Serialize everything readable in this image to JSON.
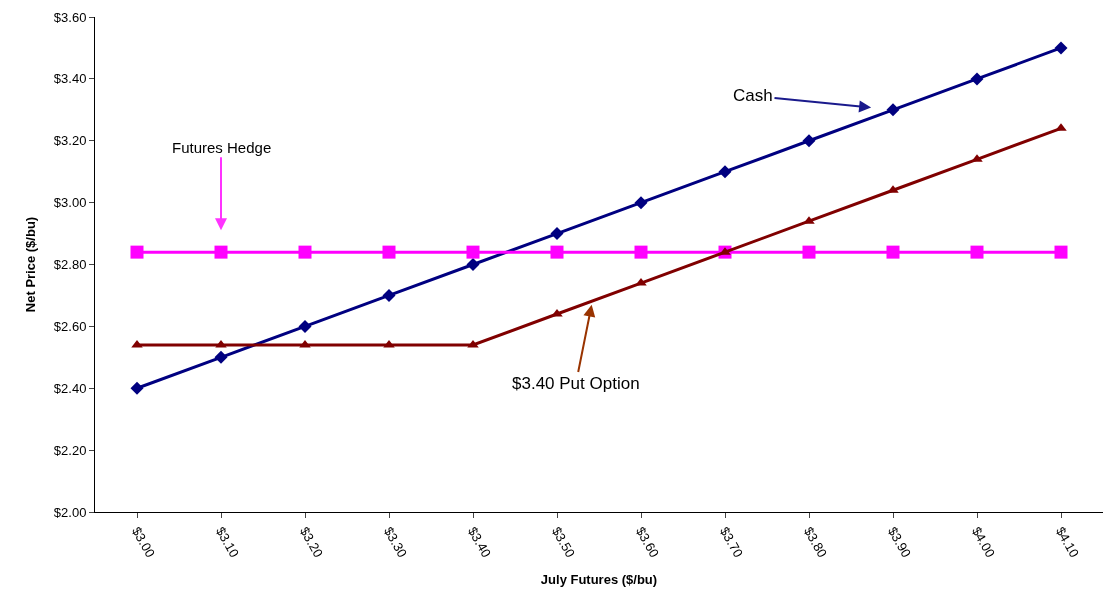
{
  "chart_data": {
    "type": "line",
    "xlabel": "July Futures ($/bu)",
    "ylabel": "Net Price ($/bu)",
    "categories": [
      "$3.00",
      "$3.10",
      "$3.20",
      "$3.30",
      "$3.40",
      "$3.50",
      "$3.60",
      "$3.70",
      "$3.80",
      "$3.90",
      "$4.00",
      "$4.10"
    ],
    "series": [
      {
        "name": "Cash",
        "color": "#000080",
        "marker": "diamond",
        "values": [
          2.4,
          2.5,
          2.6,
          2.7,
          2.8,
          2.9,
          3.0,
          3.1,
          3.2,
          3.3,
          3.4,
          3.5
        ]
      },
      {
        "name": "Futures Hedge",
        "color": "#ff00ff",
        "marker": "square",
        "values": [
          2.84,
          2.84,
          2.84,
          2.84,
          2.84,
          2.84,
          2.84,
          2.84,
          2.84,
          2.84,
          2.84,
          2.84
        ]
      },
      {
        "name": "$3.40 Put Option",
        "color": "#800000",
        "marker": "triangle",
        "values": [
          2.54,
          2.54,
          2.54,
          2.54,
          2.54,
          2.64,
          2.74,
          2.84,
          2.94,
          3.04,
          3.14,
          3.24
        ]
      }
    ],
    "ylim": [
      2.0,
      3.6
    ],
    "yticks": [
      {
        "value": 2.0,
        "label": "$2.00"
      },
      {
        "value": 2.2,
        "label": "$2.20"
      },
      {
        "value": 2.4,
        "label": "$2.40"
      },
      {
        "value": 2.6,
        "label": "$2.60"
      },
      {
        "value": 2.8,
        "label": "$2.80"
      },
      {
        "value": 3.0,
        "label": "$3.00"
      },
      {
        "value": 3.2,
        "label": "$3.20"
      },
      {
        "value": 3.4,
        "label": "$3.40"
      },
      {
        "value": 3.6,
        "label": "$3.60"
      }
    ],
    "grid": false,
    "legend": false
  }
}
